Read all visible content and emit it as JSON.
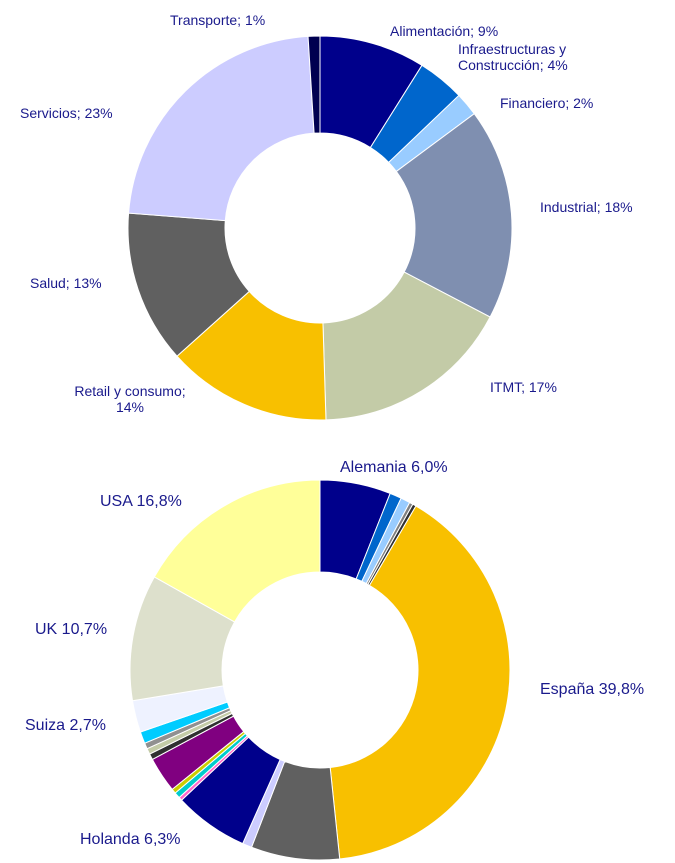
{
  "chart_data": [
    {
      "type": "donut",
      "categories": [
        "Alimentación; 9%",
        "Infraestructuras y\nConstrucción; 4%",
        "Financiero; 2%",
        "Industrial; 18%",
        "ITMT;  17%",
        "Retail y consumo;\n14%",
        "Salud; 13%",
        "Servicios; 23%",
        "Transporte; 1%"
      ],
      "values": [
        9,
        4,
        2,
        18,
        17,
        14,
        13,
        23,
        1
      ],
      "colors": [
        "#00008b",
        "#0066cc",
        "#99ccff",
        "#7f8fb0",
        "#c3cba7",
        "#f8c000",
        "#606060",
        "#ccccff",
        "#000050"
      ]
    },
    {
      "type": "donut",
      "categories": [
        "Alemania  6,0%",
        null,
        null,
        null,
        null,
        "España  39,8%",
        null,
        null,
        "Holanda  6,3%",
        null,
        null,
        null,
        null,
        null,
        null,
        null,
        null,
        "Suiza 2,7%",
        "UK  10,7%",
        "USA  16,8%"
      ],
      "values": [
        6.0,
        1.0,
        0.8,
        0.3,
        0.3,
        39.8,
        7.5,
        0.8,
        6.3,
        0.3,
        0.5,
        0.4,
        3.0,
        0.5,
        0.5,
        0.5,
        1.0,
        2.7,
        10.7,
        16.8
      ],
      "colors": [
        "#00008b",
        "#0066cc",
        "#99ccff",
        "#808080",
        "#303030",
        "#f8c000",
        "#606060",
        "#ccccff",
        "#00008b",
        "#ff66cc",
        "#00cccc",
        "#cccc00",
        "#800080",
        "#303030",
        "#c3cba7",
        "#909090",
        "#00ccff",
        "#eef2ff",
        "#dde0cc",
        "#ffff99"
      ]
    }
  ]
}
